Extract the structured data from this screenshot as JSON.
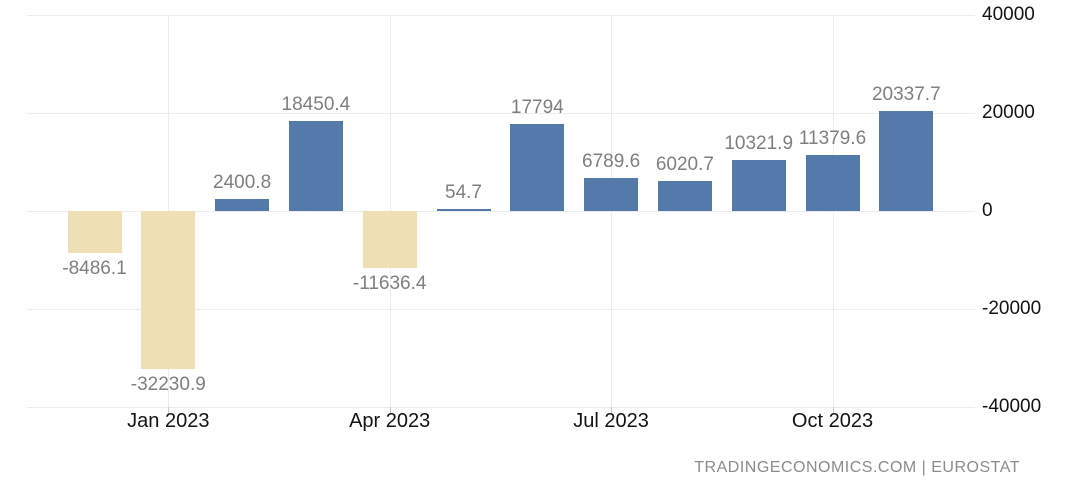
{
  "chart_data": {
    "type": "bar",
    "title": "",
    "values": [
      -8486.1,
      -32230.9,
      2400.8,
      18450.4,
      -11636.4,
      54.7,
      17794,
      6789.6,
      6020.7,
      10321.9,
      11379.6,
      20337.7
    ],
    "bar_labels": [
      "-8486.1",
      "-32230.9",
      "2400.8",
      "18450.4",
      "-11636.4",
      "54.7",
      "17794",
      "6789.6",
      "6020.7",
      "10321.9",
      "11379.6",
      "20337.7"
    ],
    "x_ticks": [
      {
        "label": "Jan 2023",
        "bar_index": 1
      },
      {
        "label": "Apr 2023",
        "bar_index": 4
      },
      {
        "label": "Jul 2023",
        "bar_index": 7
      },
      {
        "label": "Oct 2023",
        "bar_index": 10
      }
    ],
    "y_ticks": [
      {
        "label": "40000",
        "value": 40000
      },
      {
        "label": "20000",
        "value": 20000
      },
      {
        "label": "0",
        "value": 0
      },
      {
        "label": "-20000",
        "value": -20000
      },
      {
        "label": "-40000",
        "value": -40000
      }
    ],
    "ylim": [
      -40000,
      40000
    ],
    "grid": true,
    "legend_position": "none",
    "colors": {
      "positive_bar": "#5479ab",
      "negative_bar": "#eee0b4",
      "gridline": "#ececec",
      "tick": "#c9c9c9",
      "data_label": "#7f7f7f",
      "axis_label": "#141414"
    }
  },
  "footer": {
    "attribution": "TRADINGECONOMICS.COM | EUROSTAT"
  }
}
